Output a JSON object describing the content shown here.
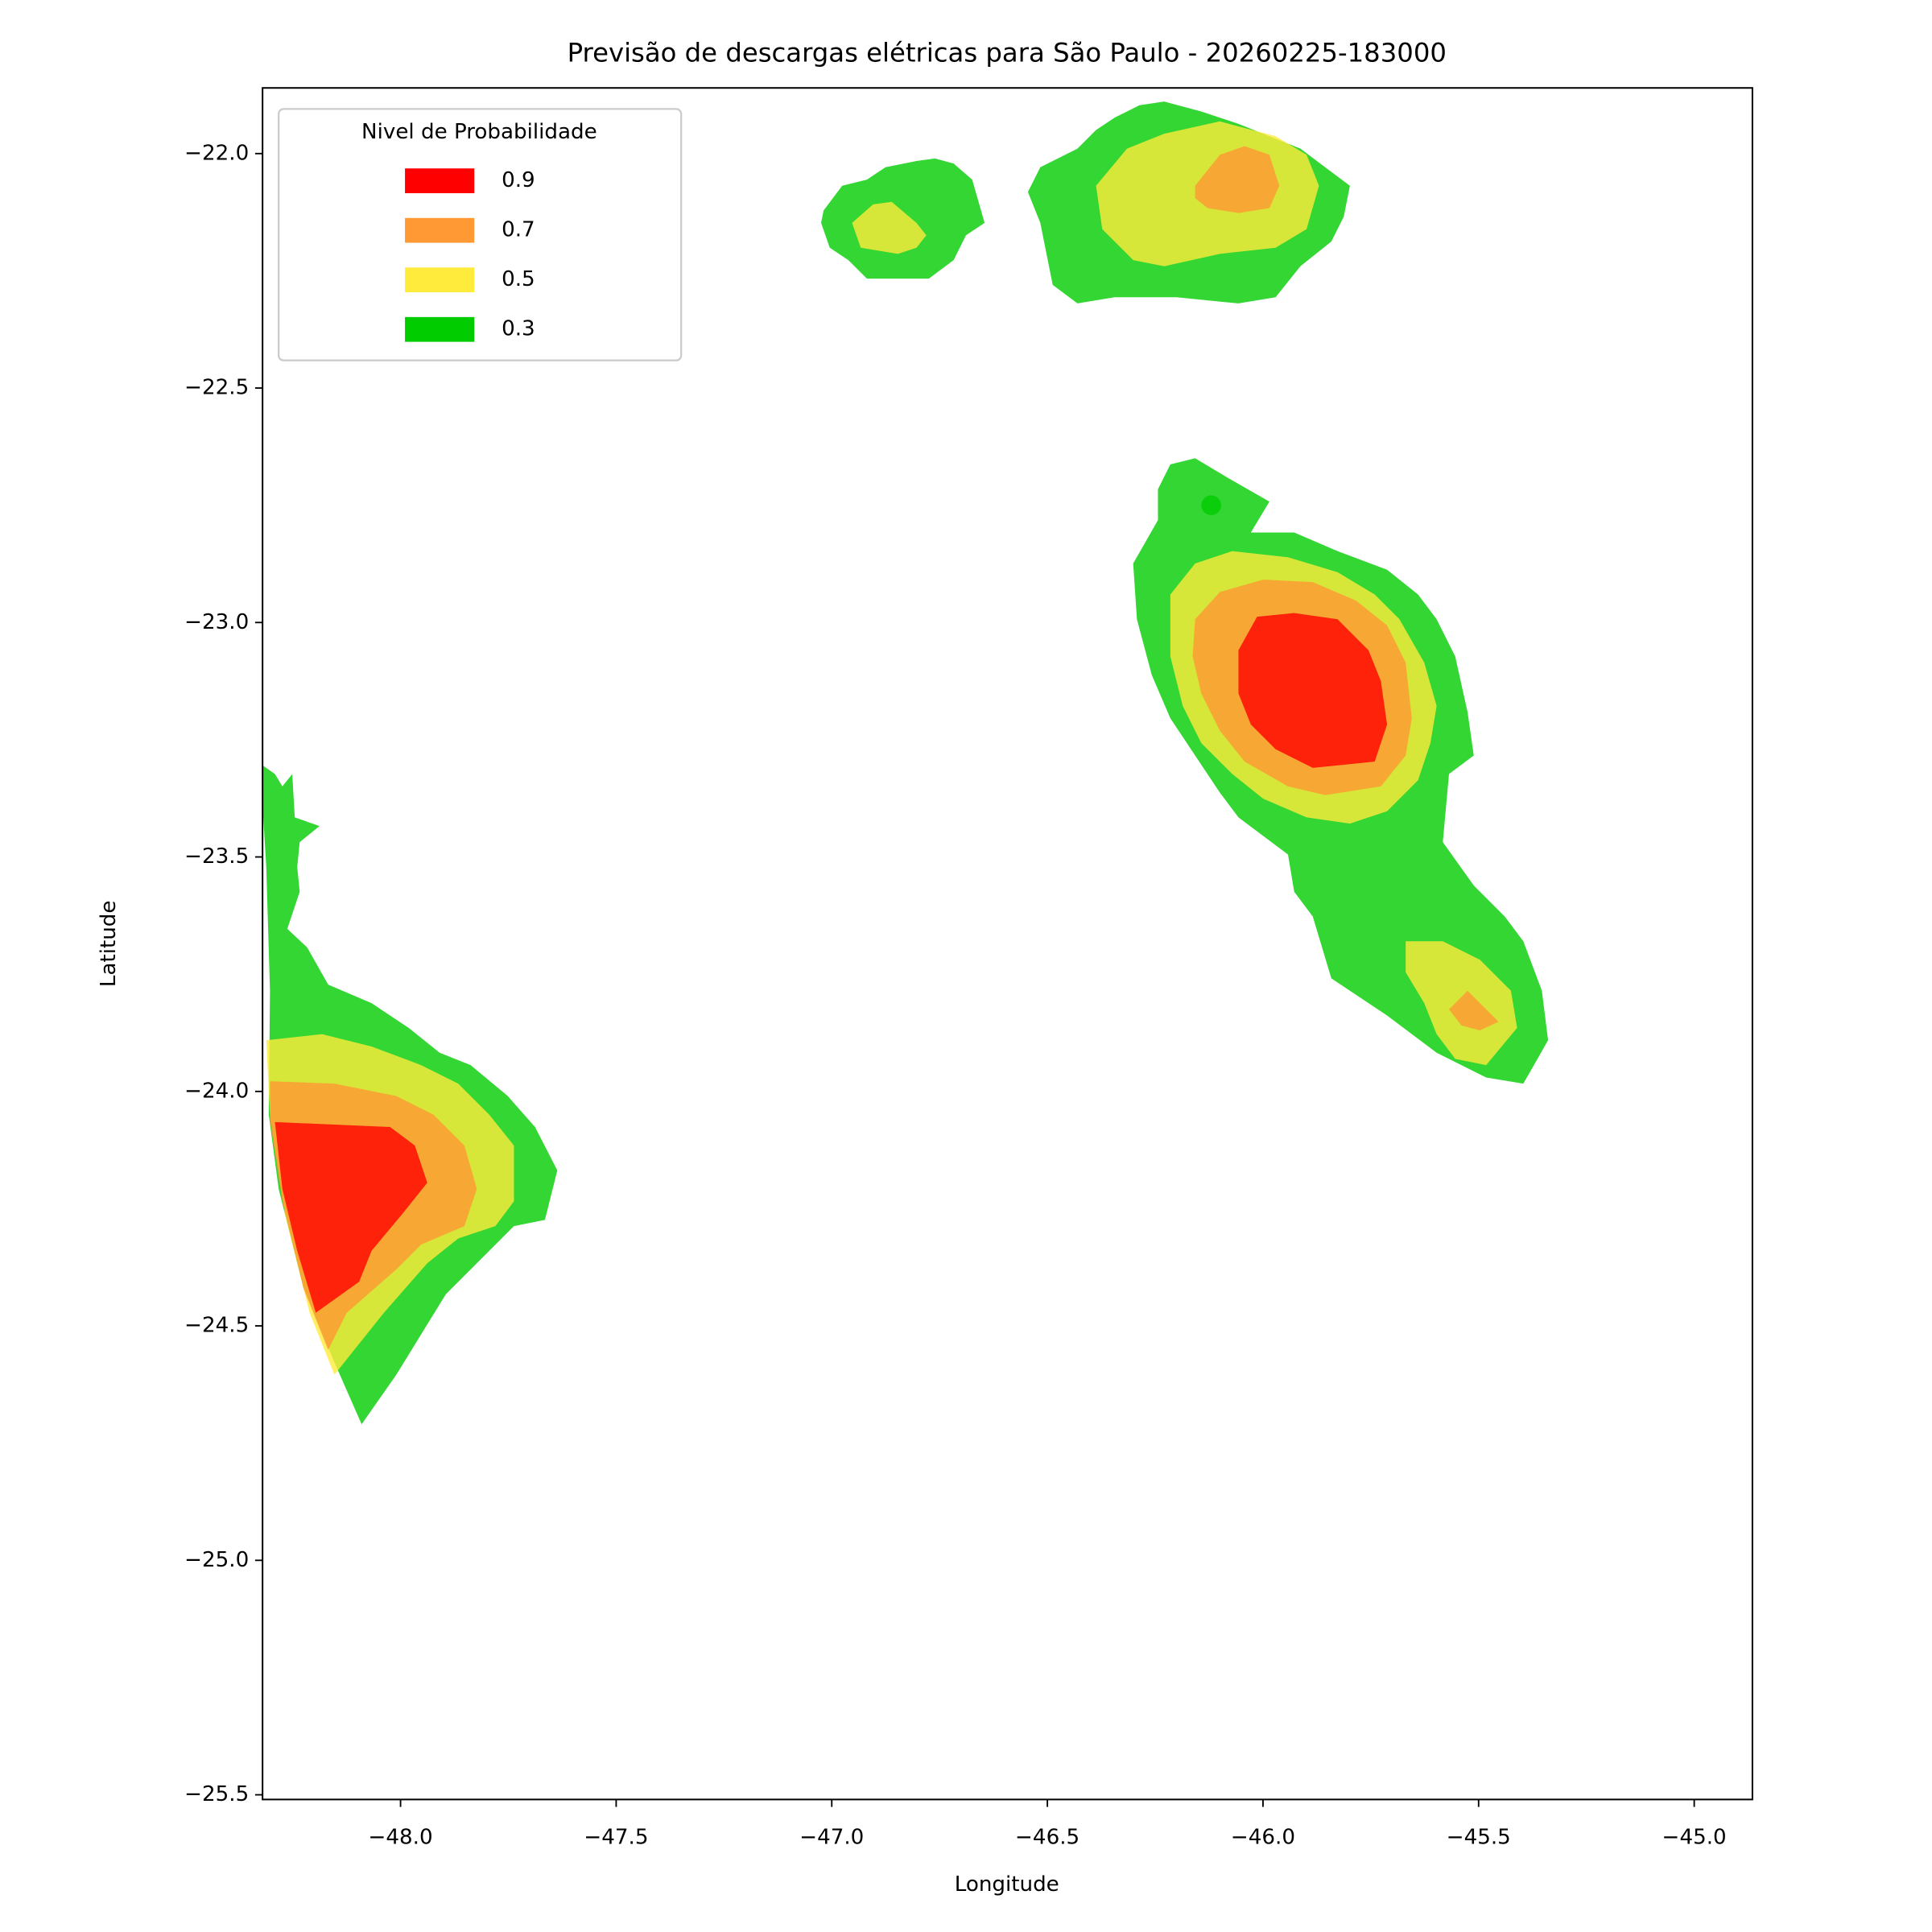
{
  "chart_data": {
    "type": "contour",
    "title": "Previsão de descargas elétricas para São Paulo - 20260225-183000",
    "x_label": "Longitude",
    "y_label": "Latitude",
    "xlim": [
      -48.32,
      -44.865
    ],
    "ylim": [
      -25.51,
      -21.86
    ],
    "xticks": [
      {
        "value": -48,
        "label": "−48.0"
      },
      {
        "value": -47.5,
        "label": "−47.5"
      },
      {
        "value": -47,
        "label": "−47.0"
      },
      {
        "value": -46.5,
        "label": "−46.5"
      },
      {
        "value": -46,
        "label": "−46.0"
      },
      {
        "value": -45.5,
        "label": "−45.5"
      },
      {
        "value": -45,
        "label": "−45.0"
      }
    ],
    "yticks": [
      {
        "value": -22,
        "label": "−22.0"
      },
      {
        "value": -22.5,
        "label": "−22.5"
      },
      {
        "value": -23,
        "label": "−23.0"
      },
      {
        "value": -23.5,
        "label": "−23.5"
      },
      {
        "value": -24,
        "label": "−24.0"
      },
      {
        "value": -24.5,
        "label": "−24.5"
      },
      {
        "value": -25,
        "label": "−25.0"
      },
      {
        "value": -25.5,
        "label": "−25.5"
      }
    ],
    "legend_title": "Nivel de Probabilidade",
    "legend_position": "upper left",
    "levels": [
      0.9,
      0.7,
      0.5,
      0.3
    ],
    "colors": [
      "#ff0000",
      "#ff9933",
      "#ffeb3b",
      "#00cc00"
    ],
    "fill_opacity": 0.8,
    "marker": {
      "x": -46.12,
      "y": -22.75,
      "color": "#00cc00"
    }
  }
}
